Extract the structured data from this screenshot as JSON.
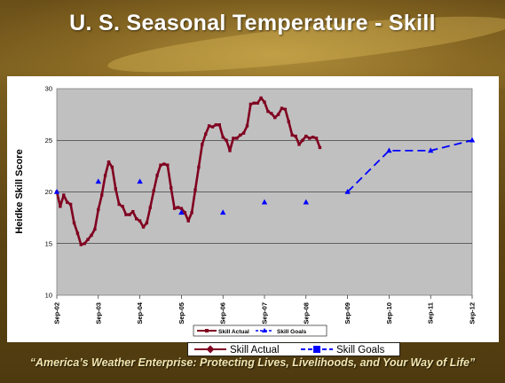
{
  "title": "U. S. Seasonal Temperature - Skill",
  "footer": "“America’s Weather Enterprise: Protecting Lives, Livelihoods, and Your Way of Life”",
  "colors": {
    "actual": "#800020",
    "goals": "#0000ff",
    "plot_bg": "#c0c0c0",
    "slide_bg": "#6a4f18"
  },
  "chart_data": {
    "type": "line",
    "ylabel": "Heidke Skill Score",
    "xlabel": "",
    "ylim": [
      10,
      30
    ],
    "yticks": [
      10,
      15,
      20,
      25,
      30
    ],
    "xticks": [
      "Sep-02",
      "Sep-03",
      "Sep-04",
      "Sep-05",
      "Sep-06",
      "Sep-07",
      "Sep-08",
      "Sep-09",
      "Sep-10",
      "Sep-11",
      "Sep-12"
    ],
    "xlim": [
      "Sep-02",
      "Sep-12"
    ],
    "grid": true,
    "series": [
      {
        "name": "Skill Actual",
        "color": "#800020",
        "marker": "square",
        "points": [
          [
            "2002-09",
            20.0
          ],
          [
            "2002-10",
            18.6
          ],
          [
            "2002-11",
            19.7
          ],
          [
            "2002-12",
            19.0
          ],
          [
            "2003-01",
            18.8
          ],
          [
            "2003-02",
            17.0
          ],
          [
            "2003-03",
            16.0
          ],
          [
            "2003-04",
            14.9
          ],
          [
            "2003-05",
            15.0
          ],
          [
            "2003-06",
            15.4
          ],
          [
            "2003-07",
            15.8
          ],
          [
            "2003-08",
            16.4
          ],
          [
            "2003-09",
            18.3
          ],
          [
            "2003-10",
            19.7
          ],
          [
            "2003-11",
            21.6
          ],
          [
            "2003-12",
            22.9
          ],
          [
            "2004-01",
            22.4
          ],
          [
            "2004-02",
            20.3
          ],
          [
            "2004-03",
            18.8
          ],
          [
            "2004-04",
            18.6
          ],
          [
            "2004-05",
            17.8
          ],
          [
            "2004-06",
            17.8
          ],
          [
            "2004-07",
            18.1
          ],
          [
            "2004-08",
            17.4
          ],
          [
            "2004-09",
            17.2
          ],
          [
            "2004-10",
            16.6
          ],
          [
            "2004-11",
            17.0
          ],
          [
            "2004-12",
            18.5
          ],
          [
            "2005-01",
            20.1
          ],
          [
            "2005-02",
            21.6
          ],
          [
            "2005-03",
            22.6
          ],
          [
            "2005-04",
            22.7
          ],
          [
            "2005-05",
            22.6
          ],
          [
            "2005-06",
            20.4
          ],
          [
            "2005-07",
            18.4
          ],
          [
            "2005-08",
            18.5
          ],
          [
            "2005-09",
            18.4
          ],
          [
            "2005-10",
            18.0
          ],
          [
            "2005-11",
            17.2
          ],
          [
            "2005-12",
            18.0
          ],
          [
            "2006-01",
            20.2
          ],
          [
            "2006-02",
            22.4
          ],
          [
            "2006-03",
            24.6
          ],
          [
            "2006-04",
            25.6
          ],
          [
            "2006-05",
            26.4
          ],
          [
            "2006-06",
            26.3
          ],
          [
            "2006-07",
            26.5
          ],
          [
            "2006-08",
            26.5
          ],
          [
            "2006-09",
            25.3
          ],
          [
            "2006-10",
            25.0
          ],
          [
            "2006-11",
            24.0
          ],
          [
            "2006-12",
            25.2
          ],
          [
            "2007-01",
            25.2
          ],
          [
            "2007-02",
            25.5
          ],
          [
            "2007-03",
            25.7
          ],
          [
            "2007-04",
            26.4
          ],
          [
            "2007-05",
            28.5
          ],
          [
            "2007-06",
            28.6
          ],
          [
            "2007-07",
            28.6
          ],
          [
            "2007-08",
            29.1
          ],
          [
            "2007-09",
            28.7
          ],
          [
            "2007-10",
            27.8
          ],
          [
            "2007-11",
            27.6
          ],
          [
            "2007-12",
            27.2
          ],
          [
            "2008-01",
            27.5
          ],
          [
            "2008-02",
            28.1
          ],
          [
            "2008-03",
            28.0
          ],
          [
            "2008-04",
            26.8
          ],
          [
            "2008-05",
            25.5
          ],
          [
            "2008-06",
            25.4
          ],
          [
            "2008-07",
            24.6
          ],
          [
            "2008-08",
            25.0
          ],
          [
            "2008-09",
            25.4
          ],
          [
            "2008-10",
            25.2
          ],
          [
            "2008-11",
            25.3
          ],
          [
            "2008-12",
            25.2
          ],
          [
            "2009-01",
            24.3
          ]
        ]
      },
      {
        "name": "Skill Goals",
        "color": "#0000ff",
        "marker": "triangle",
        "points": [
          [
            "2002-09",
            20
          ],
          [
            "2003-09",
            21
          ],
          [
            "2004-09",
            21
          ],
          [
            "2005-09",
            18
          ],
          [
            "2006-09",
            18
          ],
          [
            "2007-09",
            19
          ],
          [
            "2008-09",
            19
          ]
        ]
      },
      {
        "name": "Skill Goals",
        "color": "#0000ff",
        "marker": "triangle",
        "dashed": true,
        "points": [
          [
            "2009-09",
            20
          ],
          [
            "2010-09",
            24
          ],
          [
            "2011-09",
            24
          ],
          [
            "2012-09",
            25
          ]
        ]
      }
    ],
    "legend_small": [
      "Skill Actual",
      "Skill Goals"
    ],
    "legend_large": [
      "Skill Actual",
      "Skill Goals"
    ],
    "legend_placement": "bottom"
  }
}
